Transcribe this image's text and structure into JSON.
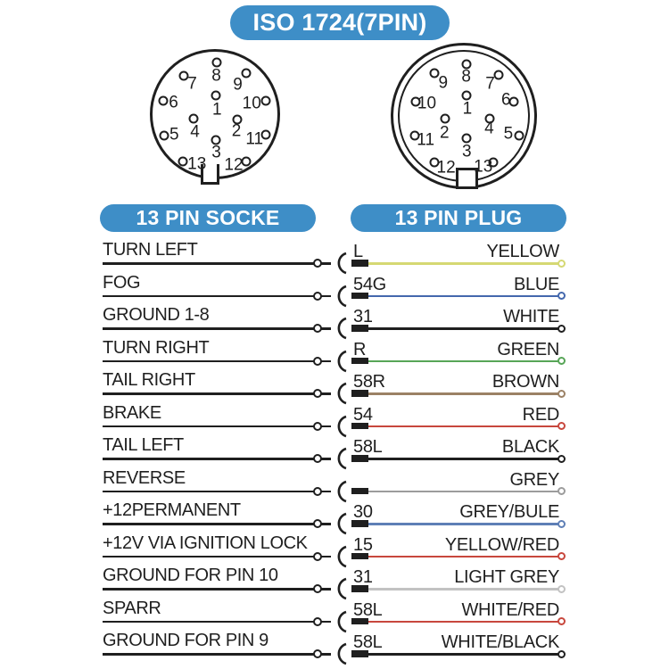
{
  "title": "ISO 1724(7PIN)",
  "colors": {
    "badge_blue": "#3e8ec7",
    "ink": "#1f1f1f"
  },
  "connectors": {
    "socket": {
      "header": "13 PIN SOCKE",
      "pins": [
        {
          "label": "8",
          "circle": [
            51,
            11.3
          ],
          "num": [
            51,
            21
          ]
        },
        {
          "label": "7",
          "circle": [
            26.7,
            21.3
          ],
          "num": [
            33,
            27
          ]
        },
        {
          "label": "9",
          "circle": [
            73.3,
            19.3
          ],
          "num": [
            67,
            28
          ]
        },
        {
          "label": "6",
          "circle": [
            11.5,
            40.2
          ],
          "num": [
            19,
            41.3
          ]
        },
        {
          "label": "10",
          "circle": [
            87.8,
            40.2
          ],
          "num": [
            77.5,
            41.8
          ]
        },
        {
          "label": "1",
          "circle": [
            50.5,
            36
          ],
          "num": [
            51.5,
            46.5
          ]
        },
        {
          "label": "4",
          "circle": [
            33.8,
            53.5
          ],
          "num": [
            35,
            63.5
          ]
        },
        {
          "label": "2",
          "circle": [
            66.7,
            54.2
          ],
          "num": [
            66,
            62.5
          ]
        },
        {
          "label": "5",
          "circle": [
            12,
            65.8
          ],
          "num": [
            19.5,
            65.3
          ]
        },
        {
          "label": "11",
          "circle": [
            87.8,
            65.3
          ],
          "num": [
            79.5,
            68.5
          ]
        },
        {
          "label": "3",
          "circle": [
            50.5,
            69.1
          ],
          "num": [
            51,
            78.7
          ]
        },
        {
          "label": "13",
          "circle": [
            26,
            85.3
          ],
          "num": [
            36.5,
            87
          ]
        },
        {
          "label": "12",
          "circle": [
            73.3,
            85.3
          ],
          "num": [
            64,
            88
          ]
        }
      ]
    },
    "plug": {
      "header": "13 PIN PLUG",
      "pins": [
        {
          "label": "8",
          "circle": [
            52,
            15
          ],
          "num": [
            51.6,
            23.2
          ]
        },
        {
          "label": "9",
          "circle": [
            30.2,
            21.1
          ],
          "num": [
            36,
            28
          ]
        },
        {
          "label": "7",
          "circle": [
            73.2,
            22.3
          ],
          "num": [
            67.8,
            28.4
          ]
        },
        {
          "label": "10",
          "circle": [
            17.3,
            40.5
          ],
          "num": [
            25,
            41.3
          ]
        },
        {
          "label": "6",
          "circle": [
            83.9,
            40.5
          ],
          "num": [
            78.5,
            39.3
          ]
        },
        {
          "label": "1",
          "circle": [
            52,
            36.3
          ],
          "num": [
            52.4,
            45.3
          ]
        },
        {
          "label": "2",
          "circle": [
            37.5,
            52
          ],
          "num": [
            36.9,
            61.6
          ]
        },
        {
          "label": "4",
          "circle": [
            67.7,
            51.6
          ],
          "num": [
            67.1,
            58.4
          ]
        },
        {
          "label": "11",
          "circle": [
            16.7,
            63.5
          ],
          "num": [
            24.2,
            66.2
          ]
        },
        {
          "label": "5",
          "circle": [
            87.2,
            63.1
          ],
          "num": [
            80.1,
            62
          ]
        },
        {
          "label": "3",
          "circle": [
            52,
            65.1
          ],
          "num": [
            52,
            74.1
          ]
        },
        {
          "label": "12",
          "circle": [
            30.3,
            81.1
          ],
          "num": [
            38,
            85.1
          ]
        },
        {
          "label": "13",
          "circle": [
            70.1,
            81.1
          ],
          "num": [
            63.1,
            84.2
          ]
        }
      ]
    }
  },
  "rows": [
    {
      "function": "TURN LEFT",
      "code": "L",
      "color_name": "YELLOW",
      "wire_hex": "#d5d873"
    },
    {
      "function": "FOG",
      "code": "54G",
      "color_name": "BLUE",
      "wire_hex": "#4468ad"
    },
    {
      "function": "GROUND 1-8",
      "code": "31",
      "color_name": "WHITE",
      "wire_hex": "#1f1f1f"
    },
    {
      "function": "TURN RIGHT",
      "code": "R",
      "color_name": "GREEN",
      "wire_hex": "#57a557"
    },
    {
      "function": "TAIL RIGHT",
      "code": "58R",
      "color_name": "BROWN",
      "wire_hex": "#9b8165"
    },
    {
      "function": "BRAKE",
      "code": "54",
      "color_name": "RED",
      "wire_hex": "#c8473d"
    },
    {
      "function": "TAIL LEFT",
      "code": "58L",
      "color_name": "BLACK",
      "wire_hex": "#1f1f1f"
    },
    {
      "function": "REVERSE",
      "code": "",
      "color_name": "GREY",
      "wire_hex": "#9c9c9c"
    },
    {
      "function": "+12PERMANENT",
      "code": "30",
      "color_name": "GREY/BULE",
      "wire_hex": "#5e7fb6"
    },
    {
      "function": "+12V VIA IGNITION LOCK",
      "code": "15",
      "color_name": "YELLOW/RED",
      "wire_hex": "#c8473d"
    },
    {
      "function": "GROUND FOR PIN 10",
      "code": "31",
      "color_name": "LIGHT GREY",
      "wire_hex": "#c2c2c2"
    },
    {
      "function": "SPARR",
      "code": "58L",
      "color_name": "WHITE/RED",
      "wire_hex": "#c8473d"
    },
    {
      "function": "GROUND FOR PIN 9",
      "code": "58L",
      "color_name": "WHITE/BLACK",
      "wire_hex": "#1f1f1f"
    }
  ]
}
